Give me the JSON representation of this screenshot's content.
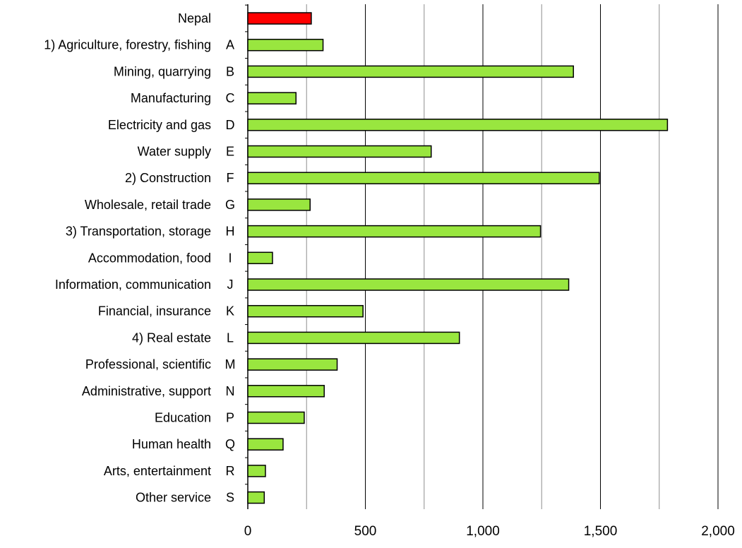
{
  "chart_data": {
    "type": "bar",
    "orientation": "horizontal",
    "categories": [
      {
        "label": "Nepal",
        "code": ""
      },
      {
        "label": "1) Agriculture, forestry, fishing",
        "code": "A"
      },
      {
        "label": "Mining, quarrying",
        "code": "B"
      },
      {
        "label": "Manufacturing",
        "code": "C"
      },
      {
        "label": "Electricity and gas",
        "code": "D"
      },
      {
        "label": "Water supply",
        "code": "E"
      },
      {
        "label": "2) Construction",
        "code": "F"
      },
      {
        "label": "Wholesale, retail trade",
        "code": "G"
      },
      {
        "label": "3) Transportation, storage",
        "code": "H"
      },
      {
        "label": "Accommodation, food",
        "code": "I"
      },
      {
        "label": "Information, communication",
        "code": "J"
      },
      {
        "label": "Financial, insurance",
        "code": "K"
      },
      {
        "label": "4) Real estate",
        "code": "L"
      },
      {
        "label": "Professional, scientific",
        "code": "M"
      },
      {
        "label": "Administrative, support",
        "code": "N"
      },
      {
        "label": "Education",
        "code": "P"
      },
      {
        "label": "Human health",
        "code": "Q"
      },
      {
        "label": "Arts, entertainment",
        "code": "R"
      },
      {
        "label": "Other service",
        "code": "S"
      }
    ],
    "values": [
      270,
      320,
      1385,
      205,
      1785,
      780,
      1495,
      265,
      1245,
      105,
      1365,
      490,
      900,
      380,
      325,
      240,
      150,
      75,
      70
    ],
    "highlight_index": 0,
    "colors": {
      "highlight": "#ff0000",
      "bar": "#99e63f",
      "outline": "#000000",
      "grid": "#a0a0a0",
      "grid_major": "#000000"
    },
    "xlim": [
      0,
      2000
    ],
    "xticks": [
      {
        "value": 0,
        "label": "0"
      },
      {
        "value": 500,
        "label": "500"
      },
      {
        "value": 1000,
        "label": "1,000"
      },
      {
        "value": 1500,
        "label": "1,500"
      },
      {
        "value": 2000,
        "label": "2,000"
      }
    ],
    "minor_grid_step": 250,
    "grid": true,
    "legend": "none",
    "title": "",
    "xlabel": "",
    "ylabel": ""
  }
}
